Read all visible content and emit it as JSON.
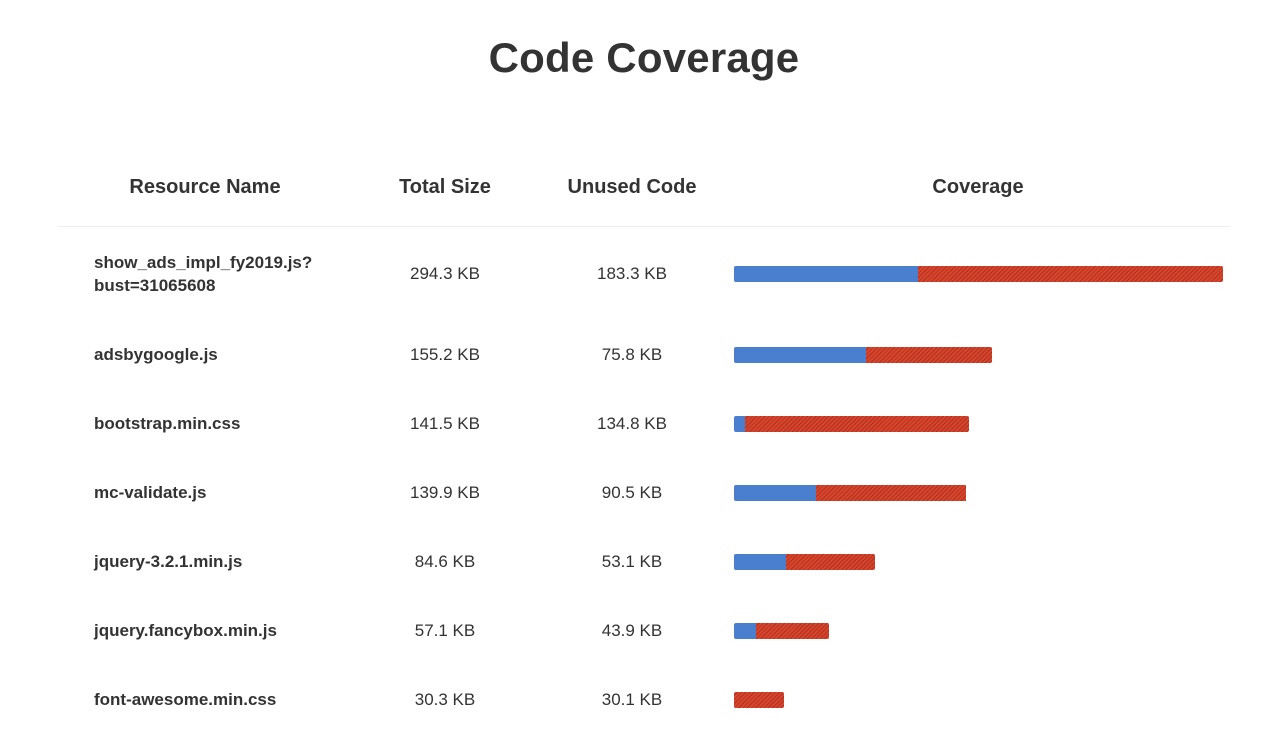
{
  "title": "Code Coverage",
  "columns": {
    "name": "Resource Name",
    "size": "Total Size",
    "unused": "Unused Code",
    "coverage": "Coverage"
  },
  "colors": {
    "used": "#4a7fd0",
    "unused": "#d9442c"
  },
  "rows": [
    {
      "name": "show_ads_impl_fy2019.js?bust=31065608",
      "size": "294.3 KB",
      "unused": "183.3 KB"
    },
    {
      "name": "adsbygoogle.js",
      "size": "155.2 KB",
      "unused": "75.8 KB"
    },
    {
      "name": "bootstrap.min.css",
      "size": "141.5 KB",
      "unused": "134.8 KB"
    },
    {
      "name": "mc-validate.js",
      "size": "139.9 KB",
      "unused": "90.5 KB"
    },
    {
      "name": "jquery-3.2.1.min.js",
      "size": "84.6 KB",
      "unused": "53.1 KB"
    },
    {
      "name": "jquery.fancybox.min.js",
      "size": "57.1 KB",
      "unused": "43.9 KB"
    },
    {
      "name": "font-awesome.min.css",
      "size": "30.3 KB",
      "unused": "30.1 KB"
    }
  ]
}
